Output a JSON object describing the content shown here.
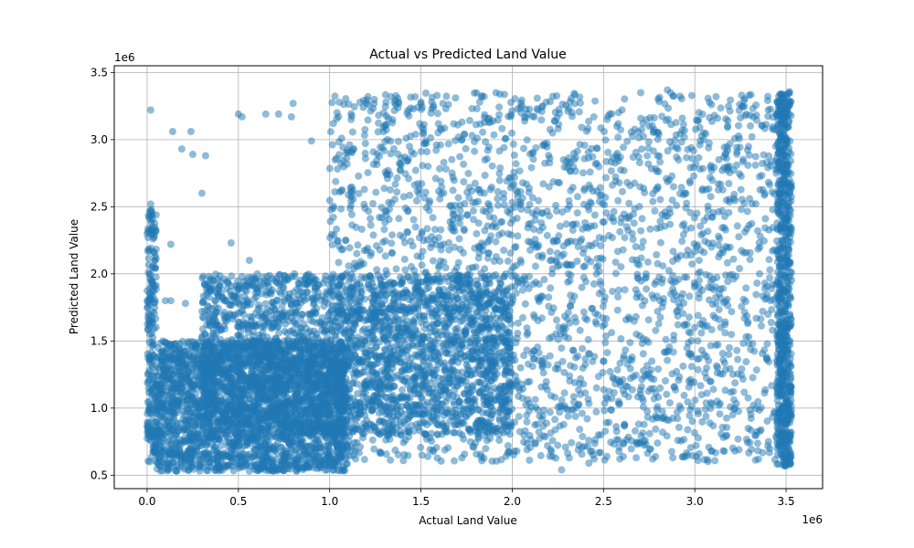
{
  "chart_data": {
    "type": "scatter",
    "title": "Actual vs Predicted Land Value",
    "xlabel": "Actual Land Value",
    "ylabel": "Predicted Land Value",
    "x_offset_text": "1e6",
    "y_offset_text": "1e6",
    "xlim": [
      -0.18,
      3.7
    ],
    "ylim": [
      0.4,
      3.55
    ],
    "xticks": [
      0.0,
      0.5,
      1.0,
      1.5,
      2.0,
      2.5,
      3.0,
      3.5
    ],
    "xtick_labels": [
      "0.0",
      "0.5",
      "1.0",
      "1.5",
      "2.0",
      "2.5",
      "3.0",
      "3.5"
    ],
    "yticks": [
      0.5,
      1.0,
      1.5,
      2.0,
      2.5,
      3.0,
      3.5
    ],
    "ytick_labels": [
      "0.5",
      "1.0",
      "1.5",
      "2.0",
      "2.5",
      "3.0",
      "3.5"
    ],
    "grid": true,
    "marker_color": "#1f77b4",
    "marker_alpha": 0.5,
    "point_groups": [
      {
        "name": "dense-lower-left",
        "x_range": [
          0.05,
          1.1
        ],
        "y_range": [
          0.53,
          1.5
        ],
        "density": "very high"
      },
      {
        "name": "dense-center",
        "x_range": [
          0.3,
          2.0
        ],
        "y_range": [
          0.8,
          2.0
        ],
        "density": "very high"
      },
      {
        "name": "dense-upper-right",
        "x_range": [
          1.0,
          3.5
        ],
        "y_range": [
          0.6,
          3.35
        ],
        "density": "very high"
      },
      {
        "name": "vertical-band-at-zero",
        "x_range": [
          0.0,
          0.05
        ],
        "y_range": [
          0.6,
          2.5
        ],
        "density": "medium"
      },
      {
        "name": "vertical-band-at-max",
        "x_range": [
          3.45,
          3.53
        ],
        "y_range": [
          0.55,
          3.37
        ],
        "density": "high"
      }
    ],
    "outliers": [
      {
        "x": 0.02,
        "y": 3.22
      },
      {
        "x": 0.14,
        "y": 3.06
      },
      {
        "x": 0.24,
        "y": 3.06
      },
      {
        "x": 0.19,
        "y": 2.93
      },
      {
        "x": 0.25,
        "y": 2.89
      },
      {
        "x": 0.32,
        "y": 2.88
      },
      {
        "x": 0.5,
        "y": 3.19
      },
      {
        "x": 0.52,
        "y": 3.17
      },
      {
        "x": 0.65,
        "y": 3.19
      },
      {
        "x": 0.72,
        "y": 3.19
      },
      {
        "x": 0.79,
        "y": 3.17
      },
      {
        "x": 0.8,
        "y": 3.27
      },
      {
        "x": 0.9,
        "y": 2.99
      },
      {
        "x": 1.02,
        "y": 3.12
      },
      {
        "x": 1.04,
        "y": 3.2
      },
      {
        "x": 0.3,
        "y": 2.6
      },
      {
        "x": 0.46,
        "y": 2.23
      },
      {
        "x": 0.56,
        "y": 2.1
      },
      {
        "x": 0.13,
        "y": 2.22
      },
      {
        "x": 0.02,
        "y": 2.52
      },
      {
        "x": 0.01,
        "y": 2.42
      },
      {
        "x": 0.0,
        "y": 2.3
      },
      {
        "x": 0.03,
        "y": 2.05
      },
      {
        "x": 0.1,
        "y": 1.8
      },
      {
        "x": 0.13,
        "y": 1.8
      },
      {
        "x": 0.21,
        "y": 1.78
      },
      {
        "x": 0.09,
        "y": 1.24
      },
      {
        "x": 1.5,
        "y": 3.27
      },
      {
        "x": 1.62,
        "y": 3.27
      },
      {
        "x": 2.85,
        "y": 3.37
      },
      {
        "x": 2.27,
        "y": 0.54
      },
      {
        "x": 2.42,
        "y": 0.59
      },
      {
        "x": 2.88,
        "y": 0.63
      },
      {
        "x": 3.22,
        "y": 0.68
      },
      {
        "x": 3.4,
        "y": 0.72
      },
      {
        "x": 3.45,
        "y": 0.74
      }
    ]
  }
}
